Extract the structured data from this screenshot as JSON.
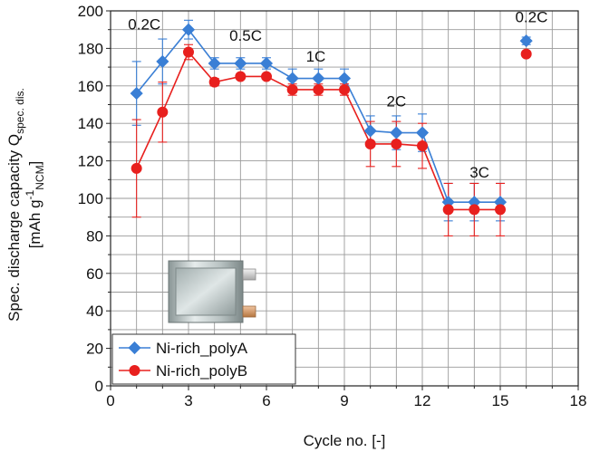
{
  "chart_data": {
    "type": "line",
    "xlabel": "Cycle no. [-]",
    "ylabel_line1_prefix": "Spec. discharge capacity Q",
    "ylabel_line1_sub": "spec. dis.",
    "ylabel_line2_prefix": "[mAh g",
    "ylabel_line2_sup": "-1",
    "ylabel_line2_sub": "NCM",
    "ylabel_line2_suffix": "]",
    "xlim": [
      0,
      18
    ],
    "ylim": [
      0,
      200
    ],
    "xticks": [
      0,
      3,
      6,
      9,
      12,
      15,
      18
    ],
    "yticks": [
      0,
      20,
      40,
      60,
      80,
      100,
      120,
      140,
      160,
      180,
      200
    ],
    "xtick_labels": [
      "0",
      "3",
      "6",
      "9",
      "12",
      "15",
      "18"
    ],
    "ytick_labels": [
      "0",
      "20",
      "40",
      "60",
      "80",
      "100",
      "120",
      "140",
      "160",
      "180",
      "200"
    ],
    "grid": true,
    "legend_position": "bottom-left",
    "series": [
      {
        "name": "Ni-rich_polyA",
        "color": "#3a7fd5",
        "marker": "diamond",
        "segments": [
          [
            {
              "x": 1,
              "y": 156,
              "err": 17
            },
            {
              "x": 2,
              "y": 173,
              "err": 12
            },
            {
              "x": 3,
              "y": 190,
              "err": 5
            },
            {
              "x": 4,
              "y": 172,
              "err": 3
            },
            {
              "x": 5,
              "y": 172,
              "err": 3
            },
            {
              "x": 6,
              "y": 172,
              "err": 3
            },
            {
              "x": 7,
              "y": 164,
              "err": 5
            },
            {
              "x": 8,
              "y": 164,
              "err": 5
            },
            {
              "x": 9,
              "y": 164,
              "err": 5
            },
            {
              "x": 10,
              "y": 136,
              "err": 8
            },
            {
              "x": 11,
              "y": 135,
              "err": 9
            },
            {
              "x": 12,
              "y": 135,
              "err": 10
            },
            {
              "x": 13,
              "y": 98,
              "err": 10
            },
            {
              "x": 14,
              "y": 98,
              "err": 10
            },
            {
              "x": 15,
              "y": 98,
              "err": 10
            }
          ],
          [
            {
              "x": 16,
              "y": 184,
              "err": 2
            }
          ]
        ]
      },
      {
        "name": "Ni-rich_polyB",
        "color": "#e8201e",
        "marker": "circle",
        "segments": [
          [
            {
              "x": 1,
              "y": 116,
              "err": 26
            },
            {
              "x": 2,
              "y": 146,
              "err": 16
            },
            {
              "x": 3,
              "y": 178,
              "err": 4
            },
            {
              "x": 4,
              "y": 162,
              "err": 2
            },
            {
              "x": 5,
              "y": 165,
              "err": 1
            },
            {
              "x": 6,
              "y": 165,
              "err": 1
            },
            {
              "x": 7,
              "y": 158,
              "err": 3
            },
            {
              "x": 8,
              "y": 158,
              "err": 3
            },
            {
              "x": 9,
              "y": 158,
              "err": 3
            },
            {
              "x": 10,
              "y": 129,
              "err": 12
            },
            {
              "x": 11,
              "y": 129,
              "err": 12
            },
            {
              "x": 12,
              "y": 128,
              "err": 12
            },
            {
              "x": 13,
              "y": 94,
              "err": 14
            },
            {
              "x": 14,
              "y": 94,
              "err": 14
            },
            {
              "x": 15,
              "y": 94,
              "err": 14
            }
          ],
          [
            {
              "x": 16,
              "y": 177,
              "err": 0
            }
          ]
        ]
      }
    ],
    "annotations": [
      {
        "text": "0.2C",
        "x": 1.3,
        "y": 190
      },
      {
        "text": "0.5C",
        "x": 5.2,
        "y": 184
      },
      {
        "text": "1C",
        "x": 7.9,
        "y": 173
      },
      {
        "text": "2C",
        "x": 11.0,
        "y": 149
      },
      {
        "text": "3C",
        "x": 14.2,
        "y": 111
      },
      {
        "text": "0.2C",
        "x": 16.2,
        "y": 194
      }
    ]
  }
}
